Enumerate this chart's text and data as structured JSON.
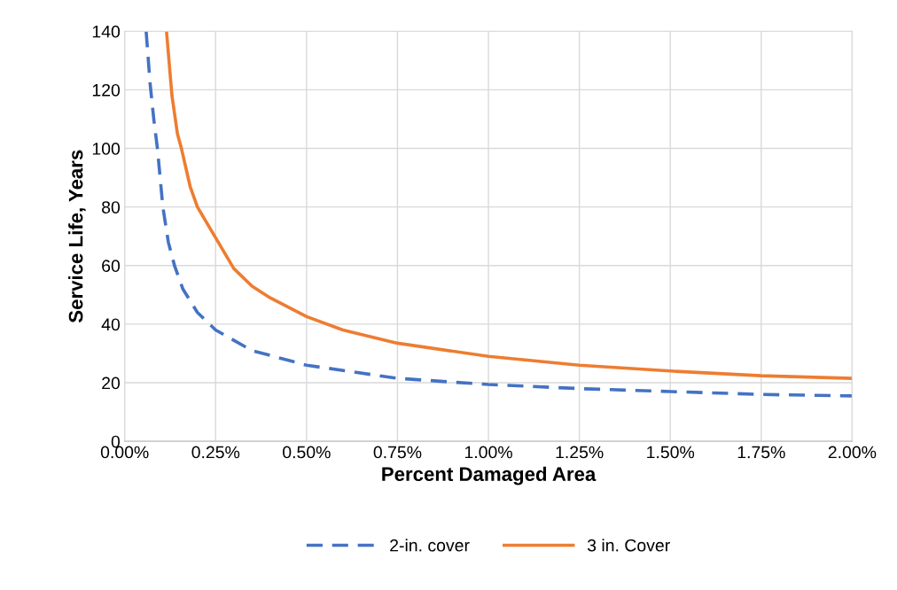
{
  "chart_data": {
    "type": "line",
    "xlabel": "Percent Damaged Area",
    "ylabel": "Service Life, Years",
    "xlim": [
      0,
      2
    ],
    "xticks": [
      {
        "value": 0,
        "label": "0.00%"
      },
      {
        "value": 0.25,
        "label": "0.25%"
      },
      {
        "value": 0.5,
        "label": "0.50%"
      },
      {
        "value": 0.75,
        "label": "0.75%"
      },
      {
        "value": 1,
        "label": "1.00%"
      },
      {
        "value": 1.25,
        "label": "1.25%"
      },
      {
        "value": 1.5,
        "label": "1.50%"
      },
      {
        "value": 1.75,
        "label": "1.75%"
      },
      {
        "value": 2,
        "label": "2.00%"
      }
    ],
    "ylim": [
      0,
      140
    ],
    "yticks": [
      0,
      20,
      40,
      60,
      80,
      100,
      120,
      140
    ],
    "grid": true,
    "legend": "bottom",
    "series": [
      {
        "name": "2-in. cover",
        "color": "#4472c4",
        "line_style": "dashed",
        "x": [
          0.059,
          0.07,
          0.08,
          0.09,
          0.105,
          0.12,
          0.137,
          0.16,
          0.2,
          0.25,
          0.35,
          0.5,
          0.75,
          1,
          1.25,
          1.5,
          1.75,
          2
        ],
        "values": [
          140,
          122,
          110,
          100,
          80,
          68,
          60,
          52,
          44,
          38,
          31,
          26,
          21.5,
          19.4,
          18,
          17,
          16,
          15.5
        ]
      },
      {
        "name": "3 in. Cover",
        "color": "#ed7d31",
        "line_style": "solid",
        "x": [
          0.115,
          0.13,
          0.145,
          0.156,
          0.18,
          0.2,
          0.25,
          0.3,
          0.35,
          0.4,
          0.5,
          0.6,
          0.75,
          1,
          1.25,
          1.5,
          1.75,
          2
        ],
        "values": [
          140,
          118,
          105,
          100,
          87,
          80,
          69.5,
          59,
          53,
          49,
          42.6,
          38,
          33.5,
          29,
          26,
          24,
          22.4,
          21.5
        ]
      }
    ]
  }
}
